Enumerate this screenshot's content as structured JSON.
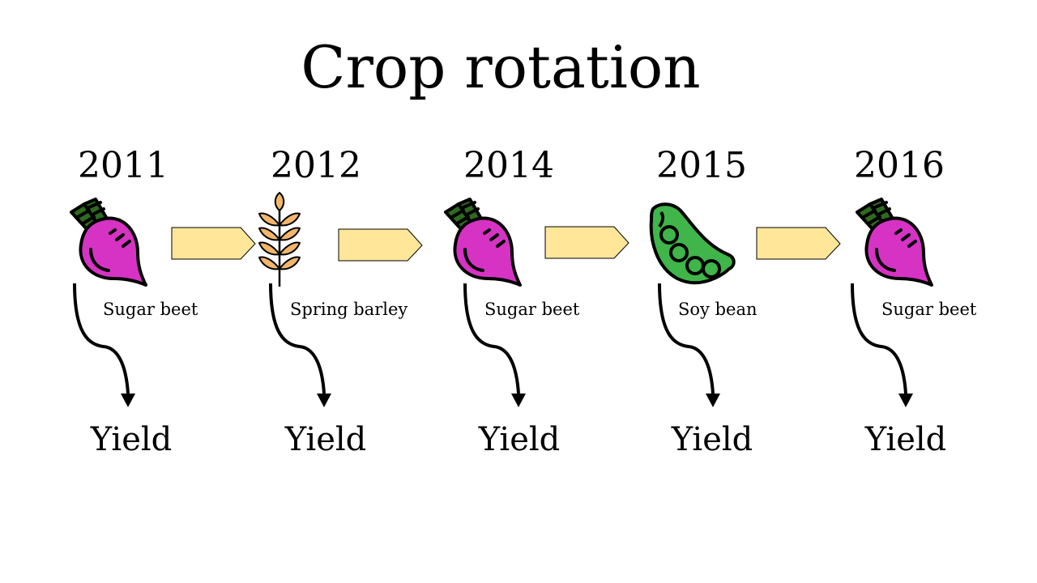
{
  "title": "Crop rotation",
  "stages": [
    {
      "year": "2011",
      "crop": "Sugar beet",
      "icon": "beet-icon",
      "result": "Yield"
    },
    {
      "year": "2012",
      "crop": "Spring barley",
      "icon": "wheat-icon",
      "result": "Yield"
    },
    {
      "year": "2014",
      "crop": "Sugar beet",
      "icon": "beet-icon",
      "result": "Yield"
    },
    {
      "year": "2015",
      "crop": "Soy bean",
      "icon": "soybean-pod-icon",
      "result": "Yield"
    },
    {
      "year": "2016",
      "crop": "Sugar beet",
      "icon": "beet-icon",
      "result": "Yield"
    }
  ],
  "colors": {
    "beet": "#d633c4",
    "beet_leaves": "#2e6b1f",
    "barley": "#f2b66a",
    "soy": "#3fb54a",
    "arrow_fill": "#ffe699"
  }
}
